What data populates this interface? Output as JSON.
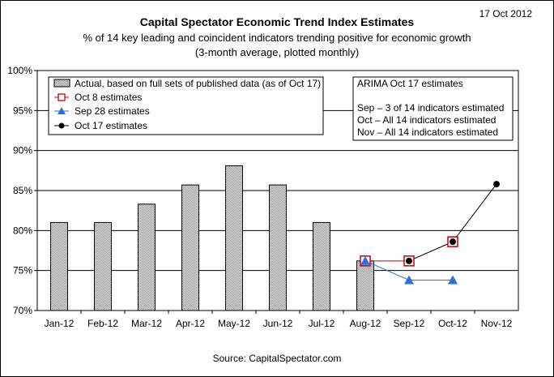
{
  "date_stamp": "17 Oct 2012",
  "source": "Source: CapitalSpectator.com",
  "chart_data": {
    "type": "bar",
    "title": "Capital Spectator Economic Trend Index Estimates",
    "subtitle": "% of 14 key leading and coincident indicators trending positive for economic growth",
    "subtitle2": "(3-month average, plotted monthly)",
    "categories": [
      "Jan-12",
      "Feb-12",
      "Mar-12",
      "Apr-12",
      "May-12",
      "Jun-12",
      "Jul-12",
      "Aug-12",
      "Sep-12",
      "Oct-12",
      "Nov-12"
    ],
    "ylim": [
      70,
      100
    ],
    "yticks": [
      70,
      75,
      80,
      85,
      90,
      95,
      100
    ],
    "ytick_labels": [
      "70%",
      "75%",
      "80%",
      "85%",
      "90%",
      "95%",
      "100%"
    ],
    "grid": true,
    "legend_position": "top-left",
    "series": [
      {
        "name": "Actual, based on full sets of published data (as of Oct 17)",
        "kind": "bar",
        "color": "#c8c8c8",
        "values": [
          81.0,
          81.0,
          83.3,
          85.7,
          88.1,
          85.7,
          81.0,
          76.2,
          null,
          null,
          null
        ]
      },
      {
        "name": "Oct 8 estimates",
        "kind": "line",
        "marker": "square-open",
        "color": "#cc0000",
        "values": [
          null,
          null,
          null,
          null,
          null,
          null,
          null,
          76.2,
          76.2,
          78.6,
          null
        ]
      },
      {
        "name": "Sep 28 estimates",
        "kind": "line",
        "marker": "triangle",
        "color": "#2f6fe0",
        "values": [
          null,
          null,
          null,
          null,
          null,
          null,
          null,
          76.2,
          73.8,
          73.8,
          null
        ]
      },
      {
        "name": "Oct 17 estimates",
        "kind": "line",
        "marker": "circle",
        "color": "#000000",
        "values": [
          null,
          null,
          null,
          null,
          null,
          null,
          null,
          null,
          76.2,
          78.6,
          85.8
        ]
      }
    ],
    "annotation": {
      "title": "ARIMA Oct 17 estimates",
      "lines": [
        "Sep –  3 of 14 indicators estimated",
        "Oct –  All 14 indicators estimated",
        "Nov – All 14 indicators estimated"
      ]
    }
  }
}
